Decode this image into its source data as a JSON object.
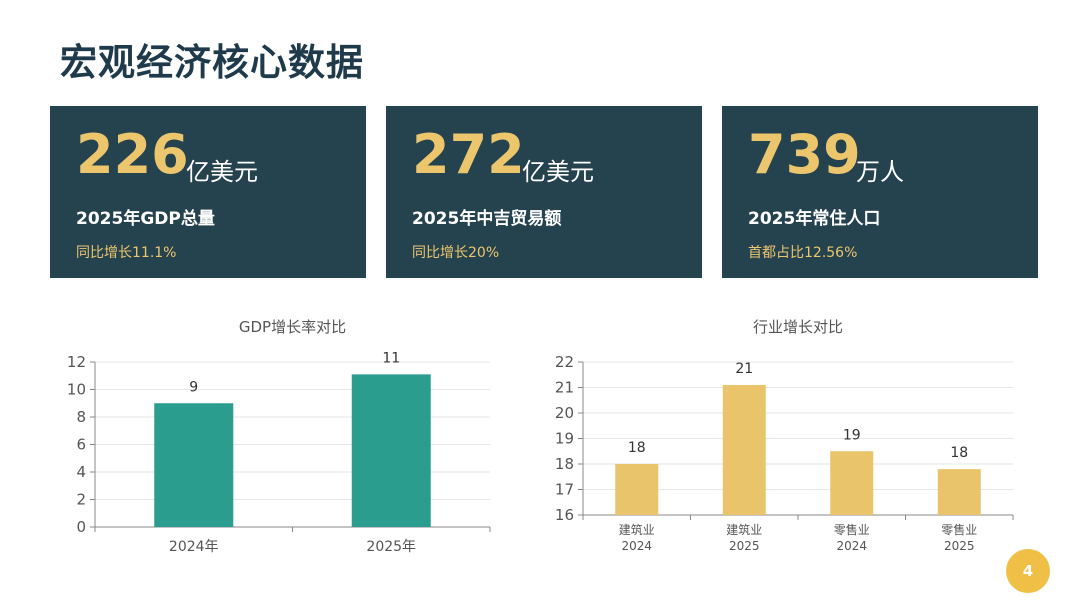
{
  "page_title": "宏观经济核心数据",
  "cards": [
    {
      "value": "226",
      "unit": "亿美元",
      "label": "2025年GDP总量",
      "sub": "同比增长11.1%"
    },
    {
      "value": "272",
      "unit": "亿美元",
      "label": "2025年中吉贸易额",
      "sub": "同比增长20%"
    },
    {
      "value": "739",
      "unit": "万人",
      "label": "2025年常住人口",
      "sub": "首都占比12.56%"
    }
  ],
  "colors": {
    "card_bg": "#25424f",
    "accent": "#ebc66c",
    "teal": "#2a9d8f",
    "gold": "#e9c46a"
  },
  "page_number": "4",
  "chart_data": [
    {
      "type": "bar",
      "title": "GDP增长率对比",
      "categories": [
        "2024年",
        "2025年"
      ],
      "values": [
        9,
        11.1
      ],
      "data_labels": [
        "9",
        "11"
      ],
      "ylim": [
        0,
        12
      ],
      "yticks": [
        0,
        2,
        4,
        6,
        8,
        10,
        12
      ],
      "grid": true,
      "color": "#2a9d8f"
    },
    {
      "type": "bar",
      "title": "行业增长对比",
      "categories": [
        [
          "建筑业",
          "2024"
        ],
        [
          "建筑业",
          "2025"
        ],
        [
          "零售业",
          "2024"
        ],
        [
          "零售业",
          "2025"
        ]
      ],
      "values": [
        18,
        21.1,
        18.5,
        17.8
      ],
      "data_labels": [
        "18",
        "21",
        "19",
        "18"
      ],
      "ylim": [
        16,
        22
      ],
      "yticks": [
        16,
        17,
        18,
        19,
        20,
        21,
        22
      ],
      "grid": true,
      "color": "#e9c46a"
    }
  ]
}
